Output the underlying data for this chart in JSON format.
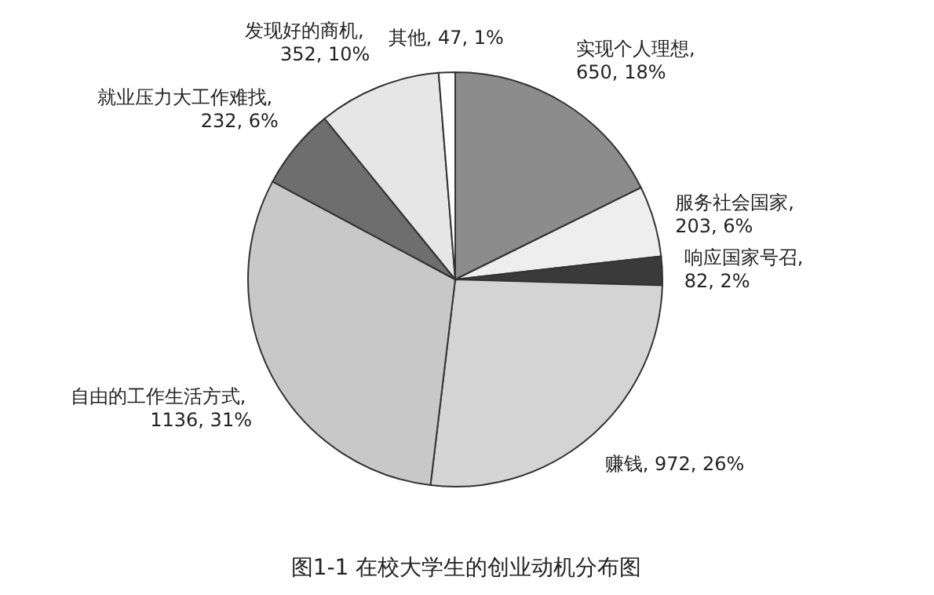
{
  "chart_data": {
    "type": "pie",
    "title": "图1-1 在校大学生的创业动机分布图",
    "categories": [
      "实现个人理想",
      "服务社会国家",
      "响应国家号召",
      "赚钱",
      "自由的工作生活方式",
      "就业压力大工作难找",
      "发现好的商机",
      "其他"
    ],
    "values": [
      650,
      203,
      82,
      972,
      1136,
      232,
      352,
      47
    ],
    "value_labels": [
      ", 650, 18%",
      ", 203, 6%",
      ", 82, 2%",
      ", 972, 26%",
      ", 1136, 31%",
      ", 232, 6%",
      ", 352, 10%",
      ", 47, 1%"
    ],
    "colors": [
      "#8c8c8c",
      "#eeeeee",
      "#3a3a3a",
      "#d4d4d4",
      "#c8c8c8",
      "#6e6e6e",
      "#e6e6e6",
      "#ffffff"
    ]
  }
}
